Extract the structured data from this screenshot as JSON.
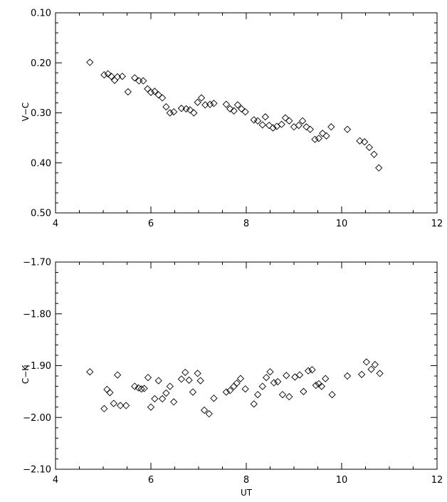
{
  "chart_data": [
    {
      "type": "scatter",
      "marker": "diamond",
      "title": "",
      "xlabel": "",
      "ylabel": "V−C",
      "xlim": [
        4,
        12
      ],
      "ylim": [
        0.1,
        0.5
      ],
      "y_inverted": true,
      "grid": false,
      "xticks": [
        4,
        6,
        8,
        10,
        12
      ],
      "xtick_labels": [
        "4",
        "6",
        "8",
        "10",
        "12"
      ],
      "yticks": [
        0.1,
        0.2,
        0.3,
        0.4,
        0.5
      ],
      "ytick_labels": [
        "0.10",
        "0.20",
        "0.30",
        "0.40",
        "0.50"
      ],
      "points": [
        [
          4.72,
          0.199
        ],
        [
          5.02,
          0.224
        ],
        [
          5.1,
          0.222
        ],
        [
          5.17,
          0.227
        ],
        [
          5.24,
          0.235
        ],
        [
          5.3,
          0.228
        ],
        [
          5.4,
          0.227
        ],
        [
          5.52,
          0.258
        ],
        [
          5.66,
          0.23
        ],
        [
          5.75,
          0.236
        ],
        [
          5.84,
          0.236
        ],
        [
          5.93,
          0.252
        ],
        [
          6.0,
          0.259
        ],
        [
          6.08,
          0.257
        ],
        [
          6.16,
          0.264
        ],
        [
          6.24,
          0.27
        ],
        [
          6.32,
          0.288
        ],
        [
          6.4,
          0.3
        ],
        [
          6.48,
          0.298
        ],
        [
          6.64,
          0.291
        ],
        [
          6.74,
          0.292
        ],
        [
          6.82,
          0.294
        ],
        [
          6.9,
          0.3
        ],
        [
          6.98,
          0.279
        ],
        [
          7.06,
          0.27
        ],
        [
          7.14,
          0.284
        ],
        [
          7.24,
          0.283
        ],
        [
          7.32,
          0.281
        ],
        [
          7.58,
          0.283
        ],
        [
          7.66,
          0.292
        ],
        [
          7.74,
          0.296
        ],
        [
          7.82,
          0.284
        ],
        [
          7.9,
          0.292
        ],
        [
          7.98,
          0.298
        ],
        [
          8.16,
          0.314
        ],
        [
          8.24,
          0.316
        ],
        [
          8.34,
          0.324
        ],
        [
          8.4,
          0.308
        ],
        [
          8.48,
          0.325
        ],
        [
          8.56,
          0.33
        ],
        [
          8.64,
          0.327
        ],
        [
          8.74,
          0.323
        ],
        [
          8.82,
          0.31
        ],
        [
          8.9,
          0.316
        ],
        [
          9.0,
          0.328
        ],
        [
          9.1,
          0.325
        ],
        [
          9.18,
          0.316
        ],
        [
          9.26,
          0.328
        ],
        [
          9.34,
          0.333
        ],
        [
          9.44,
          0.353
        ],
        [
          9.52,
          0.351
        ],
        [
          9.6,
          0.341
        ],
        [
          9.68,
          0.346
        ],
        [
          9.78,
          0.328
        ],
        [
          10.12,
          0.333
        ],
        [
          10.38,
          0.356
        ],
        [
          10.48,
          0.358
        ],
        [
          10.58,
          0.369
        ],
        [
          10.68,
          0.383
        ],
        [
          10.78,
          0.41
        ]
      ]
    },
    {
      "type": "scatter",
      "marker": "diamond",
      "title": "",
      "xlabel": "UT",
      "ylabel": "C−K",
      "xlim": [
        4,
        12
      ],
      "ylim": [
        -1.7,
        -2.1
      ],
      "y_inverted": false,
      "grid": false,
      "xticks": [
        4,
        6,
        8,
        10,
        12
      ],
      "xtick_labels": [
        "4",
        "6",
        "8",
        "10",
        "12"
      ],
      "yticks": [
        -1.7,
        -1.8,
        -1.9,
        -2.0,
        -2.1
      ],
      "ytick_labels": [
        "−1.70",
        "−1.80",
        "−1.90",
        "−2.00",
        "−2.10"
      ],
      "points": [
        [
          4.72,
          -1.912
        ],
        [
          5.02,
          -1.983
        ],
        [
          5.08,
          -1.946
        ],
        [
          5.14,
          -1.952
        ],
        [
          5.22,
          -1.973
        ],
        [
          5.3,
          -1.918
        ],
        [
          5.36,
          -1.977
        ],
        [
          5.48,
          -1.977
        ],
        [
          5.66,
          -1.94
        ],
        [
          5.74,
          -1.943
        ],
        [
          5.8,
          -1.945
        ],
        [
          5.86,
          -1.944
        ],
        [
          5.94,
          -1.923
        ],
        [
          6.0,
          -1.98
        ],
        [
          6.08,
          -1.964
        ],
        [
          6.16,
          -1.929
        ],
        [
          6.24,
          -1.964
        ],
        [
          6.32,
          -1.953
        ],
        [
          6.4,
          -1.94
        ],
        [
          6.48,
          -1.97
        ],
        [
          6.64,
          -1.926
        ],
        [
          6.72,
          -1.913
        ],
        [
          6.8,
          -1.928
        ],
        [
          6.88,
          -1.951
        ],
        [
          6.98,
          -1.915
        ],
        [
          7.04,
          -1.929
        ],
        [
          7.12,
          -1.986
        ],
        [
          7.22,
          -1.993
        ],
        [
          7.32,
          -1.963
        ],
        [
          7.58,
          -1.951
        ],
        [
          7.66,
          -1.948
        ],
        [
          7.74,
          -1.94
        ],
        [
          7.8,
          -1.934
        ],
        [
          7.88,
          -1.925
        ],
        [
          7.98,
          -1.945
        ],
        [
          8.16,
          -1.974
        ],
        [
          8.24,
          -1.956
        ],
        [
          8.34,
          -1.94
        ],
        [
          8.42,
          -1.923
        ],
        [
          8.5,
          -1.912
        ],
        [
          8.58,
          -1.933
        ],
        [
          8.66,
          -1.931
        ],
        [
          8.76,
          -1.956
        ],
        [
          8.84,
          -1.919
        ],
        [
          8.9,
          -1.96
        ],
        [
          9.02,
          -1.922
        ],
        [
          9.12,
          -1.918
        ],
        [
          9.2,
          -1.95
        ],
        [
          9.3,
          -1.91
        ],
        [
          9.38,
          -1.908
        ],
        [
          9.46,
          -1.938
        ],
        [
          9.52,
          -1.935
        ],
        [
          9.58,
          -1.94
        ],
        [
          9.66,
          -1.925
        ],
        [
          9.8,
          -1.956
        ],
        [
          10.12,
          -1.92
        ],
        [
          10.42,
          -1.917
        ],
        [
          10.52,
          -1.893
        ],
        [
          10.62,
          -1.907
        ],
        [
          10.7,
          -1.898
        ],
        [
          10.8,
          -1.915
        ]
      ]
    }
  ]
}
